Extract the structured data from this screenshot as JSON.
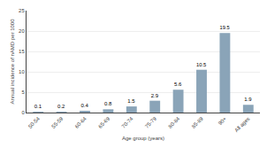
{
  "chart_data": {
    "type": "bar",
    "categories": [
      "50-54",
      "55-59",
      "60-64",
      "65-69",
      "70-74",
      "75-79",
      "80-84",
      "85-89",
      "90+",
      "All ages"
    ],
    "values": [
      0.1,
      0.2,
      0.4,
      0.8,
      1.5,
      2.9,
      5.6,
      10.5,
      19.5,
      1.9
    ],
    "color": "#8aa4b8",
    "xlabel": "Age group (years)",
    "ylabel": "Annual incidence of nAMD per 1000",
    "ylim": [
      0,
      25
    ],
    "yticks": [
      0,
      5,
      10,
      15,
      20,
      25
    ],
    "grid": true,
    "data_labels": true
  }
}
